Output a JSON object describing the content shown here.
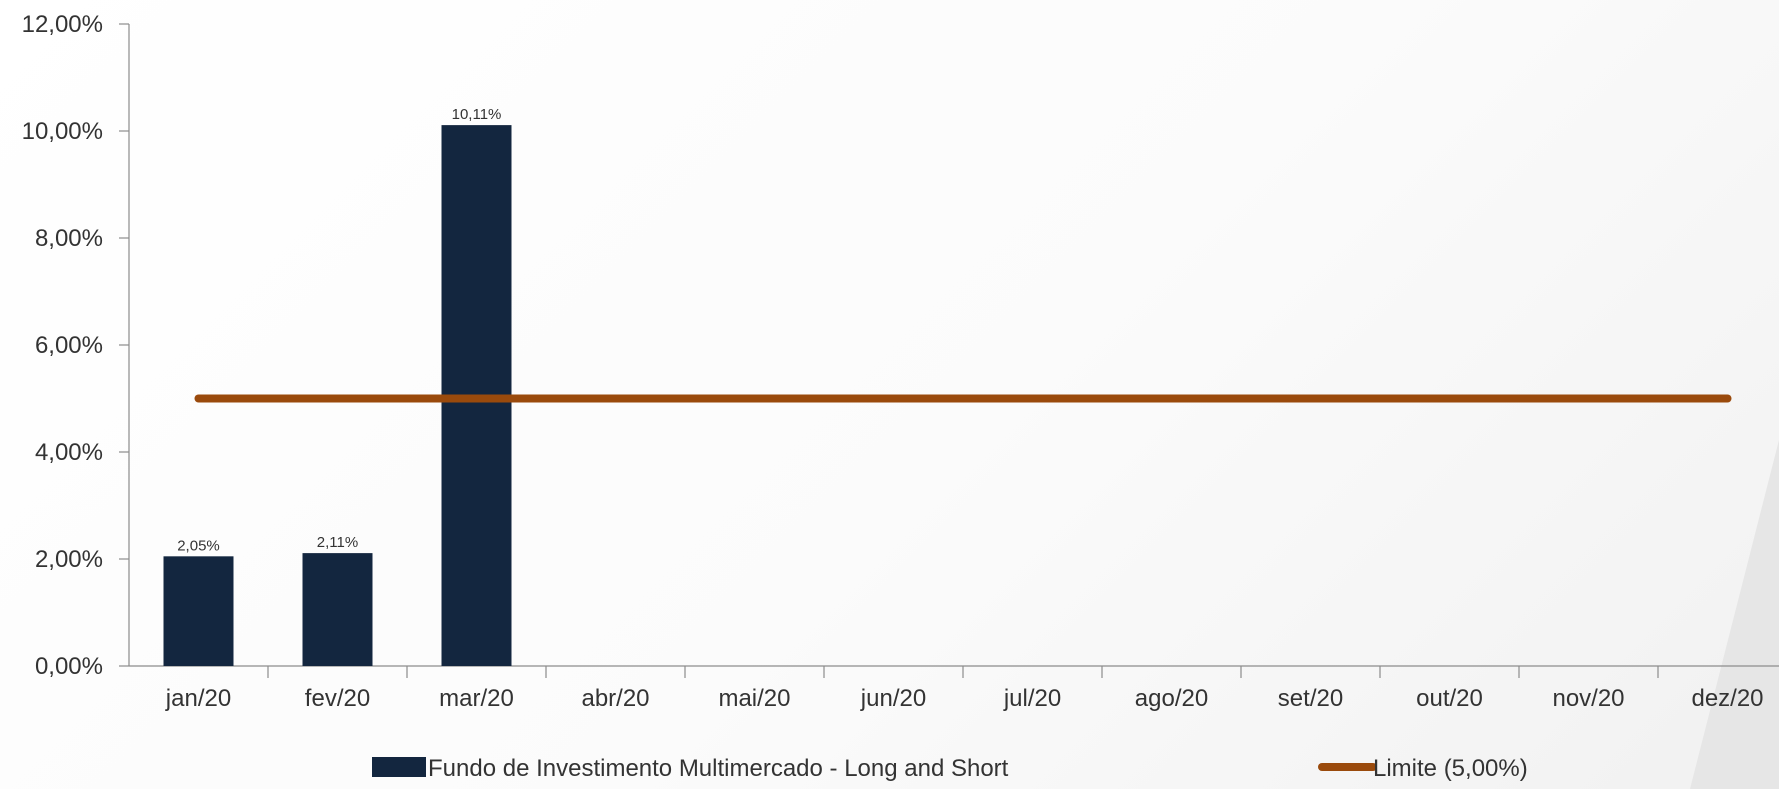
{
  "chart_data": {
    "type": "bar",
    "categories": [
      "jan/20",
      "fev/20",
      "mar/20",
      "abr/20",
      "mai/20",
      "jun/20",
      "jul/20",
      "ago/20",
      "set/20",
      "out/20",
      "nov/20",
      "dez/20"
    ],
    "y_ticks": [
      "0,00%",
      "2,00%",
      "4,00%",
      "6,00%",
      "8,00%",
      "10,00%",
      "12,00%"
    ],
    "ylim": [
      0,
      12
    ],
    "grid": false,
    "legend_position": "bottom",
    "series": [
      {
        "name": "Fundo de Investimento Multimercado - Long and Short",
        "kind": "bar",
        "color": "#13263f",
        "values": [
          2.05,
          2.11,
          10.11,
          null,
          null,
          null,
          null,
          null,
          null,
          null,
          null,
          null
        ],
        "labels": [
          "2,05%",
          "2,11%",
          "10,11%",
          "",
          "",
          "",
          "",
          "",
          "",
          "",
          "",
          ""
        ]
      },
      {
        "name": "Limite (5,00%)",
        "kind": "line",
        "color": "#9a4a0c",
        "values": [
          5,
          5,
          5,
          5,
          5,
          5,
          5,
          5,
          5,
          5,
          5,
          5
        ]
      }
    ]
  },
  "colors": {
    "axis": "#8c8c8c",
    "text": "#333333",
    "decor": "#e4e4e4"
  }
}
